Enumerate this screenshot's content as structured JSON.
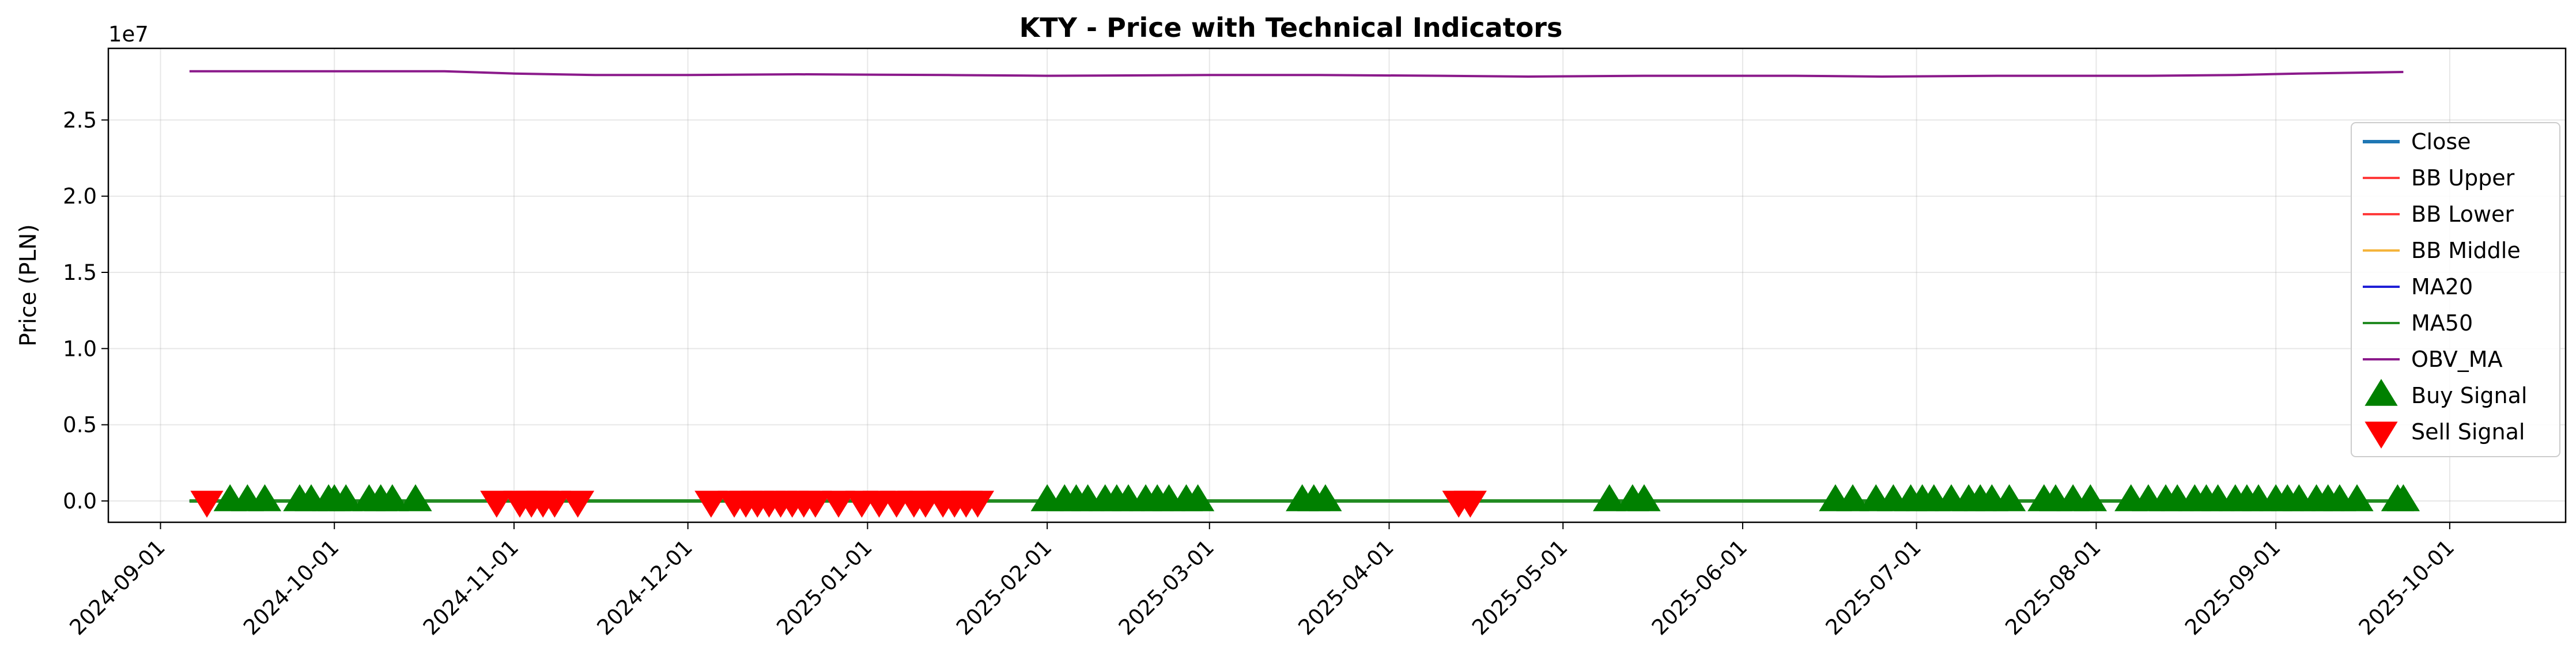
{
  "chart_data": {
    "type": "line",
    "title": "KTY - Price with Technical Indicators",
    "xlabel": "",
    "ylabel": "Price (PLN)",
    "y_offset_label": "1e7",
    "y_scale": 10000000,
    "ylim": [
      -1400000,
      29700000
    ],
    "xlim": [
      "2024-08-23",
      "2025-10-21"
    ],
    "x_ticks": [
      "2024-09-01",
      "2024-10-01",
      "2024-11-01",
      "2024-12-01",
      "2025-01-01",
      "2025-02-01",
      "2025-03-01",
      "2025-04-01",
      "2025-05-01",
      "2025-06-01",
      "2025-07-01",
      "2025-08-01",
      "2025-09-01",
      "2025-10-01"
    ],
    "y_ticks": [
      0,
      5000000,
      10000000,
      15000000,
      20000000,
      25000000
    ],
    "y_tick_labels": [
      "0.0",
      "0.5",
      "1.0",
      "1.5",
      "2.0",
      "2.5"
    ],
    "grid": true,
    "legend_position": "right",
    "series": [
      {
        "name": "Close",
        "color": "#1f77b4",
        "style": "line",
        "values": [
          [
            "2024-09-06",
            60
          ],
          [
            "2025-09-23",
            62
          ]
        ]
      },
      {
        "name": "BB Upper",
        "color": "#ff3b3b",
        "style": "line",
        "values": [
          [
            "2024-09-06",
            64
          ],
          [
            "2025-09-23",
            66
          ]
        ]
      },
      {
        "name": "BB Lower",
        "color": "#ff3b3b",
        "style": "line",
        "values": [
          [
            "2024-09-06",
            56
          ],
          [
            "2025-09-23",
            58
          ]
        ]
      },
      {
        "name": "BB Middle",
        "color": "#f5b43c",
        "style": "line",
        "values": [
          [
            "2024-09-06",
            60
          ],
          [
            "2025-09-23",
            62
          ]
        ]
      },
      {
        "name": "MA20",
        "color": "#1f1fd6",
        "style": "line",
        "values": [
          [
            "2024-09-06",
            60
          ],
          [
            "2025-09-23",
            62
          ]
        ]
      },
      {
        "name": "MA50",
        "color": "#228b22",
        "style": "line",
        "values": [
          [
            "2024-09-06",
            60
          ],
          [
            "2025-09-23",
            62
          ]
        ]
      },
      {
        "name": "OBV_MA",
        "color": "#8b1a8b",
        "style": "line",
        "values": [
          [
            "2024-09-06",
            28200000
          ],
          [
            "2024-10-01",
            28200000
          ],
          [
            "2024-10-20",
            28200000
          ],
          [
            "2024-11-01",
            28050000
          ],
          [
            "2024-11-15",
            27950000
          ],
          [
            "2024-12-01",
            27950000
          ],
          [
            "2024-12-20",
            28000000
          ],
          [
            "2025-01-15",
            27950000
          ],
          [
            "2025-02-01",
            27900000
          ],
          [
            "2025-03-01",
            27950000
          ],
          [
            "2025-03-20",
            27950000
          ],
          [
            "2025-04-10",
            27900000
          ],
          [
            "2025-04-25",
            27850000
          ],
          [
            "2025-05-15",
            27900000
          ],
          [
            "2025-06-10",
            27900000
          ],
          [
            "2025-06-25",
            27850000
          ],
          [
            "2025-07-15",
            27900000
          ],
          [
            "2025-08-10",
            27900000
          ],
          [
            "2025-08-25",
            27950000
          ],
          [
            "2025-09-05",
            28050000
          ],
          [
            "2025-09-23",
            28150000
          ]
        ]
      },
      {
        "name": "Buy Signal",
        "color": "#008000",
        "style": "marker",
        "marker": "triangle-up",
        "values": [
          [
            "2024-09-13",
            0
          ],
          [
            "2024-09-16",
            0
          ],
          [
            "2024-09-19",
            0
          ],
          [
            "2024-09-25",
            0
          ],
          [
            "2024-09-27",
            0
          ],
          [
            "2024-09-30",
            0
          ],
          [
            "2024-10-01",
            0
          ],
          [
            "2024-10-03",
            0
          ],
          [
            "2024-10-07",
            0
          ],
          [
            "2024-10-09",
            0
          ],
          [
            "2024-10-11",
            0
          ],
          [
            "2024-10-15",
            0
          ],
          [
            "2025-02-01",
            0
          ],
          [
            "2025-02-04",
            0
          ],
          [
            "2025-02-06",
            0
          ],
          [
            "2025-02-08",
            0
          ],
          [
            "2025-02-11",
            0
          ],
          [
            "2025-02-13",
            0
          ],
          [
            "2025-02-15",
            0
          ],
          [
            "2025-02-18",
            0
          ],
          [
            "2025-02-20",
            0
          ],
          [
            "2025-02-22",
            0
          ],
          [
            "2025-02-25",
            0
          ],
          [
            "2025-02-27",
            0
          ],
          [
            "2025-03-17",
            0
          ],
          [
            "2025-03-19",
            0
          ],
          [
            "2025-03-21",
            0
          ],
          [
            "2025-05-09",
            0
          ],
          [
            "2025-05-13",
            0
          ],
          [
            "2025-05-15",
            0
          ],
          [
            "2025-06-17",
            0
          ],
          [
            "2025-06-20",
            0
          ],
          [
            "2025-06-24",
            0
          ],
          [
            "2025-06-27",
            0
          ],
          [
            "2025-06-30",
            0
          ],
          [
            "2025-07-02",
            0
          ],
          [
            "2025-07-04",
            0
          ],
          [
            "2025-07-07",
            0
          ],
          [
            "2025-07-10",
            0
          ],
          [
            "2025-07-12",
            0
          ],
          [
            "2025-07-14",
            0
          ],
          [
            "2025-07-17",
            0
          ],
          [
            "2025-07-23",
            0
          ],
          [
            "2025-07-25",
            0
          ],
          [
            "2025-07-28",
            0
          ],
          [
            "2025-07-31",
            0
          ],
          [
            "2025-08-07",
            0
          ],
          [
            "2025-08-10",
            0
          ],
          [
            "2025-08-13",
            0
          ],
          [
            "2025-08-15",
            0
          ],
          [
            "2025-08-18",
            0
          ],
          [
            "2025-08-20",
            0
          ],
          [
            "2025-08-22",
            0
          ],
          [
            "2025-08-25",
            0
          ],
          [
            "2025-08-27",
            0
          ],
          [
            "2025-08-29",
            0
          ],
          [
            "2025-09-01",
            0
          ],
          [
            "2025-09-03",
            0
          ],
          [
            "2025-09-05",
            0
          ],
          [
            "2025-09-08",
            0
          ],
          [
            "2025-09-10",
            0
          ],
          [
            "2025-09-12",
            0
          ],
          [
            "2025-09-15",
            0
          ],
          [
            "2025-09-22",
            0
          ],
          [
            "2025-09-23",
            0
          ]
        ]
      },
      {
        "name": "Sell Signal",
        "color": "#ff0000",
        "style": "marker",
        "marker": "triangle-down",
        "values": [
          [
            "2024-09-09",
            0
          ],
          [
            "2024-10-29",
            0
          ],
          [
            "2024-11-02",
            0
          ],
          [
            "2024-11-04",
            0
          ],
          [
            "2024-11-06",
            0
          ],
          [
            "2024-11-08",
            0
          ],
          [
            "2024-11-12",
            0
          ],
          [
            "2024-12-05",
            0
          ],
          [
            "2024-12-09",
            0
          ],
          [
            "2024-12-11",
            0
          ],
          [
            "2024-12-13",
            0
          ],
          [
            "2024-12-15",
            0
          ],
          [
            "2024-12-17",
            0
          ],
          [
            "2024-12-19",
            0
          ],
          [
            "2024-12-21",
            0
          ],
          [
            "2024-12-23",
            0
          ],
          [
            "2024-12-27",
            0
          ],
          [
            "2024-12-31",
            0
          ],
          [
            "2025-01-03",
            0
          ],
          [
            "2025-01-06",
            0
          ],
          [
            "2025-01-09",
            0
          ],
          [
            "2025-01-11",
            0
          ],
          [
            "2025-01-14",
            0
          ],
          [
            "2025-01-16",
            0
          ],
          [
            "2025-01-18",
            0
          ],
          [
            "2025-01-20",
            0
          ],
          [
            "2025-04-13",
            0
          ],
          [
            "2025-04-15",
            0
          ]
        ]
      }
    ]
  }
}
